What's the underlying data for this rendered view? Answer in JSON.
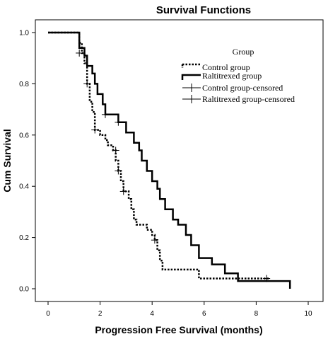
{
  "chart_data": {
    "type": "line",
    "title": "Survival Functions",
    "xlabel": "Progression Free Survival (months)",
    "ylabel": "Cum Survival",
    "xlim": [
      0,
      10
    ],
    "ylim": [
      0,
      1
    ],
    "x_ticks": [
      0,
      2,
      4,
      6,
      8,
      10
    ],
    "x_tick_labels": [
      "0",
      "2",
      "4",
      "6",
      "8",
      "10"
    ],
    "y_ticks": [
      0,
      0.2,
      0.4,
      0.6,
      0.8,
      1.0
    ],
    "y_tick_labels": [
      "0.0",
      "0.2",
      "0.4",
      "0.6",
      "0.8",
      "1.0"
    ],
    "grid": false,
    "legend": {
      "title": "Group",
      "position": "top-right",
      "entries": [
        "Control group",
        "Raltitrexed group",
        "Control group-censored",
        "Raltitrexed group-censored"
      ]
    },
    "series": [
      {
        "name": "Control group",
        "style": "dotted",
        "color": "#000000",
        "points": [
          [
            0,
            1.0
          ],
          [
            1.2,
            1.0
          ],
          [
            1.2,
            0.96
          ],
          [
            1.3,
            0.96
          ],
          [
            1.3,
            0.92
          ],
          [
            1.4,
            0.92
          ],
          [
            1.4,
            0.88
          ],
          [
            1.5,
            0.88
          ],
          [
            1.5,
            0.8
          ],
          [
            1.6,
            0.8
          ],
          [
            1.6,
            0.73
          ],
          [
            1.7,
            0.73
          ],
          [
            1.7,
            0.69
          ],
          [
            1.8,
            0.69
          ],
          [
            1.8,
            0.62
          ],
          [
            2.0,
            0.62
          ],
          [
            2.0,
            0.6
          ],
          [
            2.2,
            0.6
          ],
          [
            2.2,
            0.58
          ],
          [
            2.3,
            0.58
          ],
          [
            2.3,
            0.56
          ],
          [
            2.5,
            0.56
          ],
          [
            2.5,
            0.54
          ],
          [
            2.6,
            0.54
          ],
          [
            2.6,
            0.5
          ],
          [
            2.7,
            0.5
          ],
          [
            2.7,
            0.46
          ],
          [
            2.8,
            0.46
          ],
          [
            2.8,
            0.42
          ],
          [
            2.9,
            0.42
          ],
          [
            2.9,
            0.38
          ],
          [
            3.1,
            0.38
          ],
          [
            3.1,
            0.35
          ],
          [
            3.2,
            0.35
          ],
          [
            3.2,
            0.31
          ],
          [
            3.3,
            0.31
          ],
          [
            3.3,
            0.27
          ],
          [
            3.4,
            0.27
          ],
          [
            3.4,
            0.25
          ],
          [
            3.8,
            0.25
          ],
          [
            3.8,
            0.23
          ],
          [
            4.0,
            0.23
          ],
          [
            4.0,
            0.21
          ],
          [
            4.1,
            0.21
          ],
          [
            4.1,
            0.19
          ],
          [
            4.2,
            0.19
          ],
          [
            4.2,
            0.15
          ],
          [
            4.3,
            0.15
          ],
          [
            4.3,
            0.11
          ],
          [
            4.4,
            0.11
          ],
          [
            4.4,
            0.075
          ],
          [
            5.8,
            0.075
          ],
          [
            5.8,
            0.04
          ],
          [
            8.5,
            0.04
          ]
        ],
        "censored": [
          [
            1.2,
            0.92
          ],
          [
            1.5,
            0.8
          ],
          [
            1.8,
            0.62
          ],
          [
            2.6,
            0.54
          ],
          [
            2.7,
            0.46
          ],
          [
            2.9,
            0.38
          ],
          [
            4.1,
            0.19
          ],
          [
            8.4,
            0.04
          ]
        ]
      },
      {
        "name": "Raltitrexed group",
        "style": "solid",
        "color": "#000000",
        "points": [
          [
            0,
            1.0
          ],
          [
            1.2,
            1.0
          ],
          [
            1.2,
            0.94
          ],
          [
            1.4,
            0.94
          ],
          [
            1.4,
            0.91
          ],
          [
            1.5,
            0.91
          ],
          [
            1.5,
            0.87
          ],
          [
            1.7,
            0.87
          ],
          [
            1.7,
            0.84
          ],
          [
            1.8,
            0.84
          ],
          [
            1.8,
            0.8
          ],
          [
            1.9,
            0.8
          ],
          [
            1.9,
            0.76
          ],
          [
            2.1,
            0.76
          ],
          [
            2.1,
            0.72
          ],
          [
            2.2,
            0.72
          ],
          [
            2.2,
            0.68
          ],
          [
            2.7,
            0.68
          ],
          [
            2.7,
            0.65
          ],
          [
            3.0,
            0.65
          ],
          [
            3.0,
            0.61
          ],
          [
            3.3,
            0.61
          ],
          [
            3.3,
            0.57
          ],
          [
            3.5,
            0.57
          ],
          [
            3.5,
            0.54
          ],
          [
            3.6,
            0.54
          ],
          [
            3.6,
            0.5
          ],
          [
            3.8,
            0.5
          ],
          [
            3.8,
            0.46
          ],
          [
            4.0,
            0.46
          ],
          [
            4.0,
            0.42
          ],
          [
            4.2,
            0.42
          ],
          [
            4.2,
            0.39
          ],
          [
            4.3,
            0.39
          ],
          [
            4.3,
            0.35
          ],
          [
            4.5,
            0.35
          ],
          [
            4.5,
            0.31
          ],
          [
            4.8,
            0.31
          ],
          [
            4.8,
            0.27
          ],
          [
            5.0,
            0.27
          ],
          [
            5.0,
            0.25
          ],
          [
            5.3,
            0.25
          ],
          [
            5.3,
            0.21
          ],
          [
            5.5,
            0.21
          ],
          [
            5.5,
            0.17
          ],
          [
            5.8,
            0.17
          ],
          [
            5.8,
            0.12
          ],
          [
            6.3,
            0.12
          ],
          [
            6.3,
            0.095
          ],
          [
            6.8,
            0.095
          ],
          [
            6.8,
            0.06
          ],
          [
            7.3,
            0.06
          ],
          [
            7.3,
            0.03
          ],
          [
            9.3,
            0.03
          ],
          [
            9.3,
            0.0
          ]
        ],
        "censored": [
          [
            2.2,
            0.68
          ],
          [
            2.7,
            0.65
          ]
        ]
      }
    ]
  }
}
